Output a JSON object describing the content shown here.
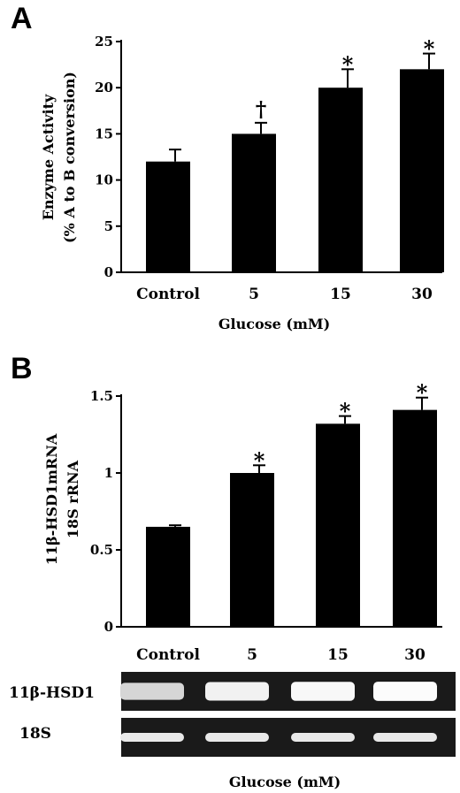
{
  "chart_data": [
    {
      "type": "bar",
      "panel": "A",
      "categories": [
        "Control",
        "5",
        "15",
        "30"
      ],
      "values": [
        12.0,
        15.0,
        20.0,
        22.0
      ],
      "errors": [
        1.3,
        1.2,
        2.0,
        1.7
      ],
      "significance": [
        "",
        "†",
        "*",
        "*"
      ],
      "xlabel": "Glucose (mM)",
      "ylabel": [
        "Enzyme Activity",
        "(% A to B conversion)"
      ],
      "ylim": [
        0,
        25
      ],
      "yticks": [
        0,
        5,
        10,
        15,
        20,
        25
      ]
    },
    {
      "type": "bar",
      "panel": "B",
      "categories": [
        "Control",
        "5",
        "15",
        "30"
      ],
      "values": [
        0.65,
        1.0,
        1.32,
        1.41
      ],
      "errors": [
        0.01,
        0.05,
        0.05,
        0.08
      ],
      "significance": [
        "",
        "*",
        "*",
        "*"
      ],
      "ylabel": [
        "11β-HSD1mRNA",
        "18S rRNA"
      ],
      "ylim": [
        0,
        1.5
      ],
      "yticks": [
        "0",
        "0.5",
        "1",
        "1.5"
      ],
      "ytick_values": [
        0,
        0.5,
        1,
        1.5
      ]
    }
  ],
  "gel": {
    "rows": [
      {
        "label": "11β-HSD1",
        "intensities": [
          0.72,
          0.9,
          0.95,
          0.98
        ]
      },
      {
        "label": "18S",
        "intensities": [
          0.85,
          0.85,
          0.85,
          0.85
        ]
      }
    ],
    "xlabel": "Glucose (mM)"
  }
}
